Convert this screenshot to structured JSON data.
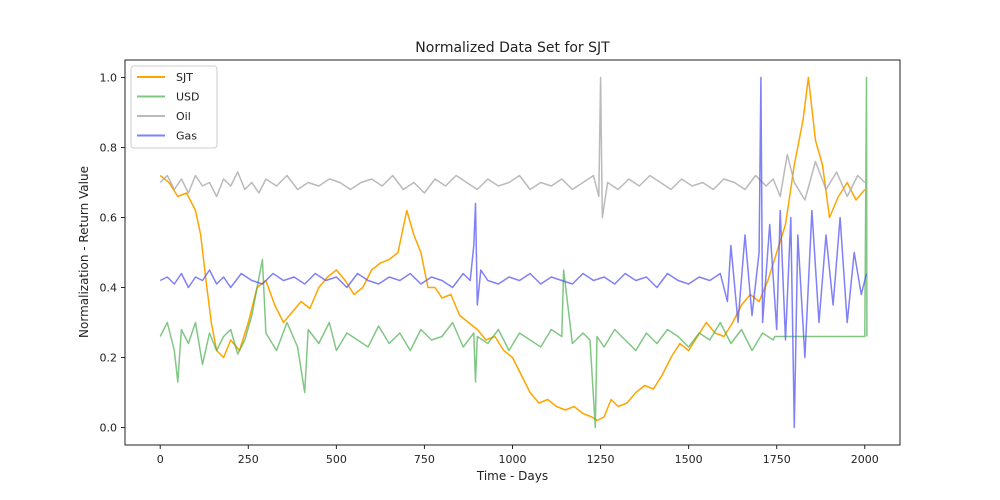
{
  "chart_data": {
    "type": "line",
    "title": "Normalized Data Set for SJT",
    "xlabel": "Time - Days",
    "ylabel": "Normalization - Return Value",
    "xlim": [
      -100,
      2100
    ],
    "ylim": [
      -0.05,
      1.05
    ],
    "xticks": [
      0,
      250,
      500,
      750,
      1000,
      1250,
      1500,
      1750,
      2000
    ],
    "xtick_labels": [
      "0",
      "250",
      "500",
      "750",
      "1000",
      "1250",
      "1500",
      "1750",
      "2000"
    ],
    "yticks": [
      0.0,
      0.2,
      0.4,
      0.6,
      0.8,
      1.0
    ],
    "ytick_labels": [
      "0.0",
      "0.2",
      "0.4",
      "0.6",
      "0.8",
      "1.0"
    ],
    "grid": false,
    "legend_position": "top-left",
    "series": [
      {
        "name": "SJT",
        "color": "#ffa500",
        "opacity": 1.0,
        "x": [
          0,
          25,
          50,
          75,
          100,
          115,
          130,
          145,
          160,
          180,
          200,
          225,
          250,
          275,
          300,
          325,
          350,
          375,
          400,
          425,
          450,
          475,
          500,
          525,
          550,
          575,
          600,
          625,
          650,
          675,
          700,
          720,
          740,
          760,
          780,
          800,
          825,
          850,
          875,
          900,
          925,
          950,
          975,
          1000,
          1025,
          1050,
          1075,
          1100,
          1125,
          1150,
          1175,
          1200,
          1225,
          1240,
          1260,
          1280,
          1300,
          1325,
          1350,
          1375,
          1400,
          1425,
          1450,
          1475,
          1500,
          1525,
          1550,
          1575,
          1600,
          1625,
          1650,
          1675,
          1700,
          1725,
          1750,
          1775,
          1800,
          1825,
          1840,
          1860,
          1880,
          1900,
          1925,
          1950,
          1975,
          2000
        ],
        "y": [
          0.72,
          0.7,
          0.66,
          0.67,
          0.62,
          0.55,
          0.42,
          0.3,
          0.22,
          0.2,
          0.25,
          0.22,
          0.3,
          0.4,
          0.42,
          0.35,
          0.3,
          0.33,
          0.36,
          0.34,
          0.4,
          0.43,
          0.45,
          0.42,
          0.38,
          0.4,
          0.45,
          0.47,
          0.48,
          0.5,
          0.62,
          0.55,
          0.5,
          0.4,
          0.4,
          0.37,
          0.38,
          0.32,
          0.3,
          0.28,
          0.25,
          0.26,
          0.22,
          0.2,
          0.15,
          0.1,
          0.07,
          0.08,
          0.06,
          0.05,
          0.06,
          0.04,
          0.03,
          0.02,
          0.03,
          0.08,
          0.06,
          0.07,
          0.1,
          0.12,
          0.11,
          0.15,
          0.2,
          0.24,
          0.22,
          0.26,
          0.3,
          0.27,
          0.26,
          0.3,
          0.35,
          0.38,
          0.36,
          0.42,
          0.5,
          0.58,
          0.75,
          0.88,
          1.0,
          0.82,
          0.75,
          0.6,
          0.66,
          0.7,
          0.65,
          0.68
        ]
      },
      {
        "name": "USD",
        "color": "#4caf50",
        "opacity": 0.7,
        "x": [
          0,
          20,
          40,
          50,
          60,
          80,
          100,
          120,
          140,
          160,
          180,
          200,
          220,
          240,
          260,
          290,
          300,
          330,
          360,
          390,
          410,
          420,
          450,
          480,
          500,
          530,
          560,
          590,
          620,
          650,
          680,
          710,
          740,
          770,
          800,
          830,
          860,
          890,
          895,
          900,
          930,
          960,
          990,
          1020,
          1050,
          1080,
          1110,
          1140,
          1145,
          1170,
          1200,
          1220,
          1235,
          1240,
          1260,
          1290,
          1320,
          1350,
          1380,
          1410,
          1440,
          1470,
          1500,
          1530,
          1560,
          1590,
          1620,
          1650,
          1680,
          1710,
          1740,
          1745,
          1760,
          1800,
          1850,
          1900,
          1950,
          2000,
          2005,
          2006
        ],
        "y": [
          0.26,
          0.3,
          0.22,
          0.13,
          0.28,
          0.24,
          0.3,
          0.18,
          0.27,
          0.22,
          0.26,
          0.28,
          0.21,
          0.25,
          0.32,
          0.48,
          0.27,
          0.22,
          0.3,
          0.23,
          0.1,
          0.28,
          0.24,
          0.3,
          0.22,
          0.27,
          0.25,
          0.23,
          0.29,
          0.24,
          0.27,
          0.22,
          0.28,
          0.25,
          0.26,
          0.3,
          0.23,
          0.27,
          0.13,
          0.26,
          0.24,
          0.28,
          0.22,
          0.27,
          0.25,
          0.23,
          0.28,
          0.26,
          0.45,
          0.24,
          0.27,
          0.25,
          0.0,
          0.26,
          0.23,
          0.28,
          0.25,
          0.22,
          0.27,
          0.24,
          0.28,
          0.26,
          0.23,
          0.27,
          0.25,
          0.3,
          0.24,
          0.28,
          0.22,
          0.27,
          0.25,
          0.26,
          0.26,
          0.26,
          0.26,
          0.26,
          0.26,
          0.26,
          1.0,
          0.26
        ]
      },
      {
        "name": "Oil",
        "color": "#a9a9a9",
        "opacity": 0.8,
        "x": [
          0,
          20,
          40,
          60,
          80,
          100,
          120,
          140,
          160,
          180,
          200,
          220,
          240,
          260,
          280,
          300,
          330,
          360,
          390,
          420,
          450,
          480,
          510,
          540,
          570,
          600,
          630,
          660,
          690,
          720,
          750,
          780,
          810,
          840,
          870,
          900,
          930,
          960,
          990,
          1020,
          1050,
          1080,
          1110,
          1140,
          1170,
          1200,
          1230,
          1245,
          1250,
          1255,
          1270,
          1300,
          1330,
          1360,
          1390,
          1420,
          1450,
          1480,
          1510,
          1540,
          1570,
          1600,
          1630,
          1660,
          1690,
          1720,
          1740,
          1760,
          1780,
          1800,
          1830,
          1860,
          1890,
          1920,
          1950,
          1980,
          2000
        ],
        "y": [
          0.7,
          0.72,
          0.68,
          0.71,
          0.67,
          0.72,
          0.69,
          0.7,
          0.66,
          0.71,
          0.69,
          0.73,
          0.68,
          0.7,
          0.67,
          0.71,
          0.69,
          0.72,
          0.68,
          0.7,
          0.69,
          0.71,
          0.7,
          0.68,
          0.7,
          0.71,
          0.69,
          0.72,
          0.68,
          0.7,
          0.67,
          0.71,
          0.69,
          0.72,
          0.7,
          0.68,
          0.71,
          0.69,
          0.7,
          0.72,
          0.68,
          0.7,
          0.69,
          0.71,
          0.68,
          0.7,
          0.72,
          0.66,
          1.0,
          0.6,
          0.7,
          0.68,
          0.71,
          0.69,
          0.72,
          0.7,
          0.68,
          0.71,
          0.69,
          0.7,
          0.68,
          0.71,
          0.7,
          0.68,
          0.72,
          0.69,
          0.71,
          0.66,
          0.78,
          0.7,
          0.65,
          0.76,
          0.68,
          0.73,
          0.66,
          0.72,
          0.7
        ]
      },
      {
        "name": "Gas",
        "color": "#5555f5",
        "opacity": 0.75,
        "x": [
          0,
          20,
          40,
          60,
          80,
          100,
          120,
          140,
          160,
          180,
          200,
          230,
          260,
          290,
          320,
          350,
          380,
          410,
          440,
          470,
          500,
          530,
          560,
          590,
          620,
          650,
          680,
          710,
          740,
          770,
          800,
          830,
          860,
          880,
          890,
          895,
          900,
          910,
          930,
          960,
          990,
          1020,
          1050,
          1080,
          1110,
          1140,
          1170,
          1200,
          1230,
          1260,
          1290,
          1320,
          1350,
          1380,
          1410,
          1440,
          1470,
          1500,
          1530,
          1560,
          1590,
          1610,
          1620,
          1640,
          1660,
          1680,
          1700,
          1705,
          1710,
          1730,
          1750,
          1760,
          1775,
          1790,
          1800,
          1810,
          1830,
          1850,
          1870,
          1890,
          1910,
          1930,
          1950,
          1970,
          1990,
          2005
        ],
        "y": [
          0.42,
          0.43,
          0.41,
          0.44,
          0.4,
          0.43,
          0.42,
          0.45,
          0.41,
          0.43,
          0.4,
          0.44,
          0.42,
          0.41,
          0.44,
          0.42,
          0.43,
          0.41,
          0.44,
          0.42,
          0.43,
          0.4,
          0.44,
          0.42,
          0.41,
          0.43,
          0.42,
          0.44,
          0.41,
          0.43,
          0.42,
          0.4,
          0.44,
          0.42,
          0.52,
          0.64,
          0.35,
          0.45,
          0.42,
          0.41,
          0.43,
          0.42,
          0.44,
          0.41,
          0.43,
          0.42,
          0.41,
          0.44,
          0.42,
          0.43,
          0.41,
          0.44,
          0.42,
          0.43,
          0.4,
          0.44,
          0.42,
          0.41,
          0.43,
          0.42,
          0.44,
          0.36,
          0.52,
          0.3,
          0.55,
          0.32,
          0.5,
          1.0,
          0.3,
          0.58,
          0.28,
          0.62,
          0.25,
          0.6,
          0.0,
          0.55,
          0.2,
          0.62,
          0.3,
          0.55,
          0.35,
          0.6,
          0.3,
          0.5,
          0.38,
          0.44
        ]
      }
    ]
  }
}
